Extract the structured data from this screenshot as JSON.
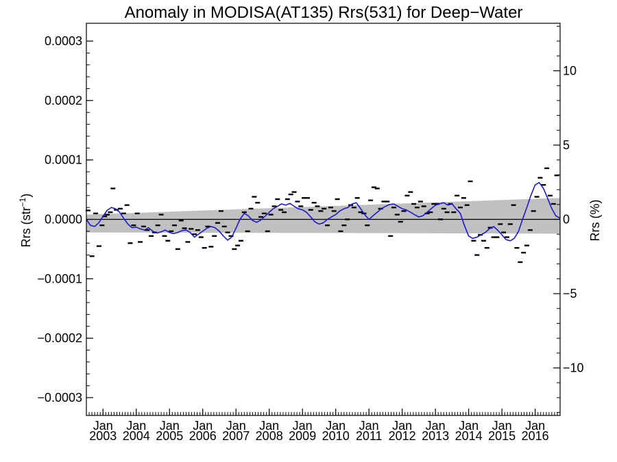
{
  "chart_data": {
    "type": "scatter",
    "title": "Anomaly in MODISA(AT135) Rrs(531) for Deep−Water",
    "ylabel": "Rrs (str",
    "ylabel_superscript": "−1",
    "ylabel_close": ")",
    "y2label": "Rrs (%)",
    "xlabel": "",
    "xlim": [
      2002.5,
      2016.75
    ],
    "ylim": [
      -0.00033,
      0.00033
    ],
    "y2lim": [
      -13.2,
      13.2
    ],
    "grid": false,
    "colors": {
      "series_line": "#1a1acc",
      "points": "#000000",
      "band": "#c0c0c0",
      "zero_line": "#000000"
    },
    "y_ticks": [
      {
        "value": 0.0003,
        "label": "0.0003"
      },
      {
        "value": 0.0002,
        "label": "0.0002"
      },
      {
        "value": 0.0001,
        "label": "0.0001"
      },
      {
        "value": 0.0,
        "label": "0.0000"
      },
      {
        "value": -0.0001,
        "label": "−0.0001"
      },
      {
        "value": -0.0002,
        "label": "−0.0002"
      },
      {
        "value": -0.0003,
        "label": "−0.0003"
      }
    ],
    "y2_ticks": [
      {
        "value": 10,
        "label": "10"
      },
      {
        "value": 5,
        "label": "5"
      },
      {
        "value": 0,
        "label": "0"
      },
      {
        "value": -5,
        "label": "−5"
      },
      {
        "value": -10,
        "label": "−10"
      }
    ],
    "x_ticks": [
      {
        "value": 2003,
        "month": "Jan",
        "year": "2003"
      },
      {
        "value": 2004,
        "month": "Jan",
        "year": "2004"
      },
      {
        "value": 2005,
        "month": "Jan",
        "year": "2005"
      },
      {
        "value": 2006,
        "month": "Jan",
        "year": "2006"
      },
      {
        "value": 2007,
        "month": "Jan",
        "year": "2007"
      },
      {
        "value": 2008,
        "month": "Jan",
        "year": "2008"
      },
      {
        "value": 2009,
        "month": "Jan",
        "year": "2009"
      },
      {
        "value": 2010,
        "month": "Jan",
        "year": "2010"
      },
      {
        "value": 2011,
        "month": "Jan",
        "year": "2011"
      },
      {
        "value": 2012,
        "month": "Jan",
        "year": "2012"
      },
      {
        "value": 2013,
        "month": "Jan",
        "year": "2013"
      },
      {
        "value": 2014,
        "month": "Jan",
        "year": "2014"
      },
      {
        "value": 2015,
        "month": "Jan",
        "year": "2015"
      },
      {
        "value": 2016,
        "month": "Jan",
        "year": "2016"
      }
    ],
    "trend_band": {
      "x": [
        2002.5,
        2016.75
      ],
      "upper": [
        8e-06,
        3.6e-05
      ],
      "lower": [
        -2.2e-05,
        -2.4e-05
      ]
    },
    "series": [
      {
        "type": "line",
        "x": [
          2002.5,
          2002.62,
          2002.75,
          2002.87,
          2003.0,
          2003.12,
          2003.25,
          2003.37,
          2003.5,
          2003.62,
          2003.75,
          2003.87,
          2004.0,
          2004.12,
          2004.25,
          2004.37,
          2004.5,
          2004.62,
          2004.75,
          2004.87,
          2005.0,
          2005.12,
          2005.25,
          2005.37,
          2005.5,
          2005.62,
          2005.75,
          2005.87,
          2006.0,
          2006.12,
          2006.25,
          2006.37,
          2006.5,
          2006.62,
          2006.75,
          2006.87,
          2007.0,
          2007.12,
          2007.25,
          2007.37,
          2007.5,
          2007.62,
          2007.75,
          2007.87,
          2008.0,
          2008.12,
          2008.25,
          2008.37,
          2008.5,
          2008.62,
          2008.75,
          2008.87,
          2009.0,
          2009.12,
          2009.25,
          2009.37,
          2009.5,
          2009.62,
          2009.75,
          2009.87,
          2010.0,
          2010.12,
          2010.25,
          2010.37,
          2010.5,
          2010.62,
          2010.75,
          2010.87,
          2011.0,
          2011.12,
          2011.25,
          2011.37,
          2011.5,
          2011.62,
          2011.75,
          2011.87,
          2012.0,
          2012.12,
          2012.25,
          2012.37,
          2012.5,
          2012.62,
          2012.75,
          2012.87,
          2013.0,
          2013.12,
          2013.25,
          2013.37,
          2013.5,
          2013.62,
          2013.75,
          2013.87,
          2014.0,
          2014.12,
          2014.25,
          2014.37,
          2014.5,
          2014.62,
          2014.75,
          2014.87,
          2015.0,
          2015.12,
          2015.25,
          2015.37,
          2015.5,
          2015.62,
          2015.75,
          2015.87,
          2016.0,
          2016.12,
          2016.25,
          2016.37,
          2016.5,
          2016.62,
          2016.75
        ],
        "values": [
          0.0,
          -1e-05,
          -1.2e-05,
          -6e-06,
          5e-06,
          1.5e-05,
          2e-05,
          1.8e-05,
          1.2e-05,
          2e-06,
          -8e-06,
          -1.4e-05,
          -1.3e-05,
          -1.6e-05,
          -1.8e-05,
          -1.4e-05,
          -2e-05,
          -2.3e-05,
          -2.1e-05,
          -1.8e-05,
          -2.2e-05,
          -2.4e-05,
          -2.2e-05,
          -1.9e-05,
          -1.8e-05,
          -2.2e-05,
          -3e-05,
          -2.5e-05,
          -2e-05,
          -1.5e-05,
          -1.2e-05,
          -1.4e-05,
          -2e-05,
          -2.8e-05,
          -3.5e-05,
          -3e-05,
          -1.5e-05,
          0.0,
          1e-05,
          6e-06,
          -2e-06,
          -5e-06,
          -1e-06,
          5e-06,
          1.2e-05,
          1.8e-05,
          2.2e-05,
          2.6e-05,
          2.4e-05,
          2.7e-05,
          2.2e-05,
          1.8e-05,
          1.6e-05,
          1.2e-05,
          4e-06,
          -4e-06,
          -8e-06,
          -6e-06,
          0.0,
          4e-06,
          8e-06,
          1.4e-05,
          1.8e-05,
          2e-05,
          2.6e-05,
          2.8e-05,
          1.8e-05,
          8e-06,
          0.0,
          6e-06,
          1.2e-05,
          1.8e-05,
          2.2e-05,
          2.5e-05,
          2.6e-05,
          2.2e-05,
          1.8e-05,
          1.6e-05,
          1.2e-05,
          8e-06,
          4e-06,
          6e-06,
          1.2e-05,
          1.8e-05,
          2.4e-05,
          2.6e-05,
          2.8e-05,
          2.4e-05,
          2.6e-05,
          1.8e-05,
          1e-05,
          -1e-05,
          -2.8e-05,
          -3.2e-05,
          -3e-05,
          -2.6e-05,
          -2.2e-05,
          -1.6e-05,
          -1.2e-05,
          -1.8e-05,
          -2.6e-05,
          -3.4e-05,
          -3.6e-05,
          -3.2e-05,
          -2e-05,
          0.0,
          2e-05,
          4e-05,
          5.8e-05,
          6.2e-05,
          5.2e-05,
          3.6e-05,
          1.8e-05,
          6e-06,
          2e-06
        ]
      },
      {
        "type": "scatter",
        "x": [
          2002.55,
          2002.67,
          2002.78,
          2002.88,
          2002.97,
          2003.05,
          2003.13,
          2003.22,
          2003.3,
          2003.4,
          2003.52,
          2003.62,
          2003.72,
          2003.82,
          2003.92,
          2004.03,
          2004.12,
          2004.22,
          2004.33,
          2004.45,
          2004.55,
          2004.65,
          2004.75,
          2004.85,
          2004.95,
          2005.05,
          2005.15,
          2005.25,
          2005.35,
          2005.45,
          2005.55,
          2005.65,
          2005.75,
          2005.85,
          2005.95,
          2006.05,
          2006.15,
          2006.25,
          2006.35,
          2006.45,
          2006.55,
          2006.65,
          2006.75,
          2006.85,
          2006.95,
          2007.05,
          2007.15,
          2007.25,
          2007.35,
          2007.45,
          2007.55,
          2007.65,
          2007.75,
          2007.85,
          2007.95,
          2008.05,
          2008.15,
          2008.25,
          2008.35,
          2008.45,
          2008.55,
          2008.65,
          2008.75,
          2008.85,
          2008.95,
          2009.05,
          2009.15,
          2009.25,
          2009.35,
          2009.45,
          2009.55,
          2009.65,
          2009.75,
          2009.85,
          2009.95,
          2010.05,
          2010.15,
          2010.25,
          2010.35,
          2010.45,
          2010.55,
          2010.65,
          2010.75,
          2010.85,
          2010.95,
          2011.05,
          2011.15,
          2011.25,
          2011.35,
          2011.45,
          2011.55,
          2011.65,
          2011.75,
          2011.85,
          2011.95,
          2012.05,
          2012.15,
          2012.25,
          2012.35,
          2012.45,
          2012.55,
          2012.65,
          2012.75,
          2012.85,
          2012.95,
          2013.05,
          2013.15,
          2013.25,
          2013.35,
          2013.45,
          2013.55,
          2013.65,
          2013.75,
          2013.85,
          2013.95,
          2014.05,
          2014.15,
          2014.25,
          2014.35,
          2014.45,
          2014.55,
          2014.65,
          2014.75,
          2014.85,
          2014.95,
          2015.05,
          2015.15,
          2015.25,
          2015.35,
          2015.45,
          2015.55,
          2015.65,
          2015.75,
          2015.85,
          2015.95,
          2016.05,
          2016.15,
          2016.25,
          2016.35,
          2016.45,
          2016.55,
          2016.65
        ],
        "values": [
          1.5e-05,
          -6.2e-05,
          1e-05,
          -4.5e-05,
          -1e-05,
          5e-06,
          8e-06,
          1.2e-05,
          5.2e-05,
          1.6e-05,
          1.8e-05,
          1e-05,
          2.4e-05,
          -4e-05,
          -1e-05,
          1e-05,
          -3.8e-05,
          -1.2e-05,
          -1.8e-05,
          -2.8e-05,
          -2.2e-05,
          -1e-05,
          8e-06,
          -2.8e-05,
          -3.6e-05,
          -2e-05,
          -1e-05,
          -5e-05,
          -2e-06,
          -1.5e-05,
          -3.8e-05,
          -1.6e-05,
          -2.5e-05,
          -1.8e-05,
          -3e-05,
          -4.8e-05,
          -1.2e-05,
          -4.6e-05,
          -2.8e-05,
          -6e-06,
          1.4e-05,
          -1.2e-05,
          -2.2e-05,
          -2.8e-05,
          -5e-05,
          -4.4e-05,
          -3.6e-05,
          1.2e-05,
          -2e-05,
          1.8e-05,
          3.8e-05,
          2.8e-05,
          4e-06,
          1e-05,
          -2e-05,
          8e-06,
          2.2e-05,
          3.4e-05,
          1.6e-05,
          1.2e-05,
          3.4e-05,
          4.2e-05,
          4.6e-05,
          3e-05,
          2.2e-05,
          3.6e-05,
          3.6e-05,
          1.6e-05,
          2.8e-05,
          2.2e-05,
          1.4e-05,
          1.8e-05,
          -1e-05,
          2e-05,
          1.4e-05,
          3.4e-05,
          -2e-05,
          -1e-05,
          0.0,
          2.4e-05,
          2e-05,
          3.6e-05,
          1.2e-05,
          1e-05,
          -1e-05,
          3.2e-05,
          5.4e-05,
          5.2e-05,
          1.8e-05,
          3e-05,
          3e-05,
          -2.8e-05,
          2e-05,
          8e-06,
          -4e-06,
          1.4e-05,
          4e-05,
          4.6e-05,
          2.6e-05,
          2e-05,
          3e-05,
          2.2e-05,
          1e-05,
          1.2e-05,
          2.6e-05,
          2.6e-05,
          0.0,
          1.8e-05,
          1.2e-05,
          2.6e-05,
          1.2e-05,
          4e-05,
          2e-05,
          3.6e-05,
          2.4e-05,
          6.4e-05,
          -3.6e-05,
          -6e-05,
          -2.6e-05,
          -3.6e-05,
          -4.8e-05,
          -1.4e-05,
          -3e-05,
          -3e-05,
          -8e-06,
          -2.2e-05,
          -3e-05,
          -8e-06,
          2.4e-05,
          -4.8e-05,
          -7.2e-05,
          -5.6e-05,
          -4.4e-05,
          -1.8e-05,
          1.4e-05,
          3.8e-05,
          7e-05,
          5.8e-05,
          8.6e-05,
          4e-05,
          2.6e-05,
          7.4e-05
        ]
      }
    ]
  }
}
